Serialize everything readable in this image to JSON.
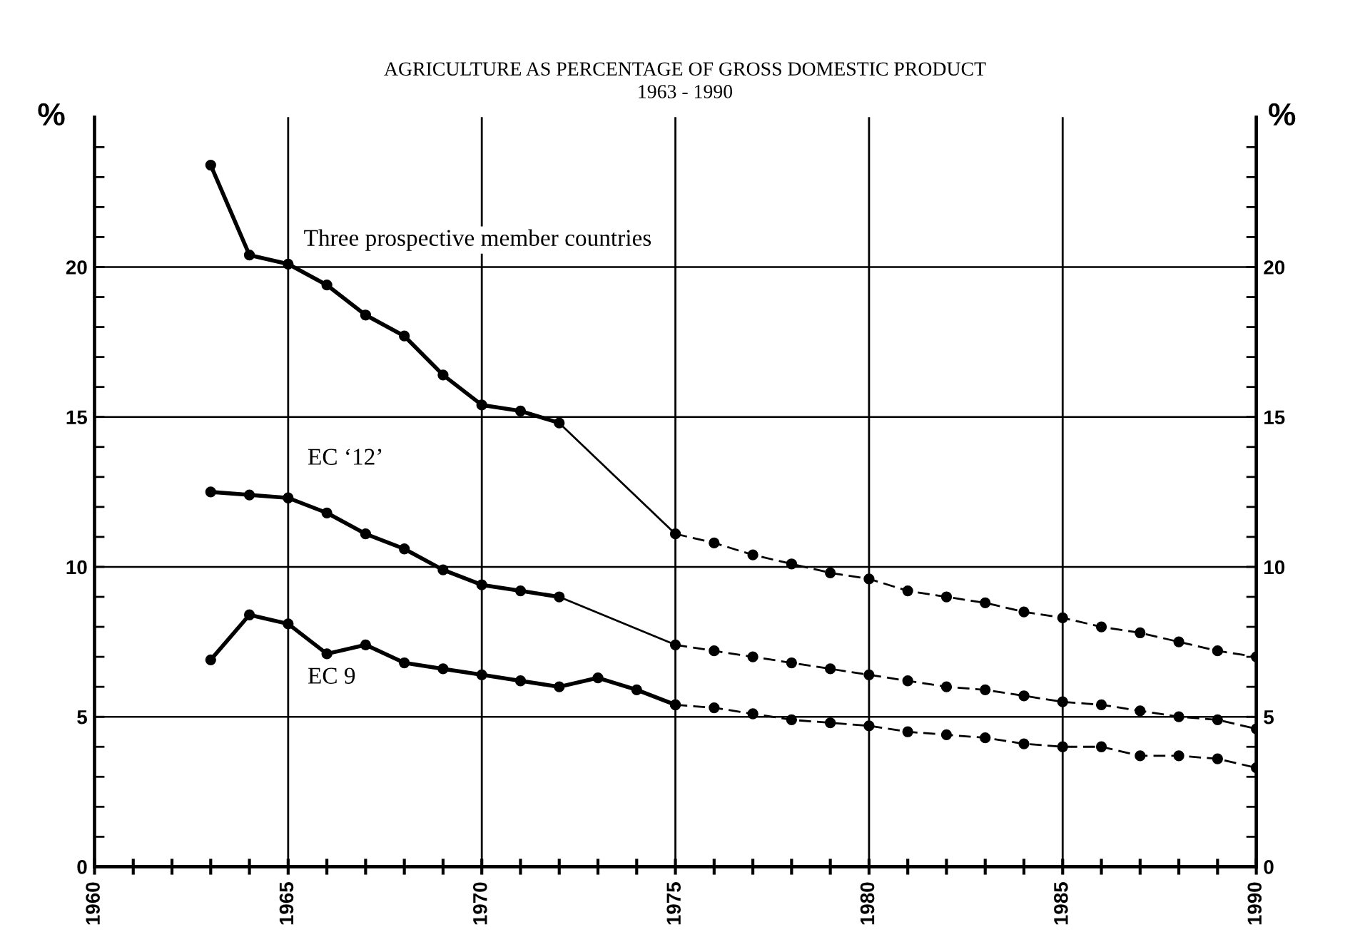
{
  "chart_data": {
    "type": "line",
    "title": "AGRICULTURE AS PERCENTAGE OF GROSS DOMESTIC PRODUCT",
    "subtitle": "1963 - 1990",
    "ylabel": "%",
    "y2label": "%",
    "xlim": [
      1960,
      1990
    ],
    "ylim": [
      0,
      25
    ],
    "y2lim": [
      0,
      25
    ],
    "xticks": [
      1960,
      {
        "value": 1961,
        "label": null
      },
      {
        "value": 1962,
        "label": null
      },
      {
        "value": 1963,
        "label": null
      },
      {
        "value": 1964,
        "label": null
      },
      1965,
      {
        "value": 1966,
        "label": null
      },
      {
        "value": 1967,
        "label": null
      },
      {
        "value": 1968,
        "label": null
      },
      {
        "value": 1969,
        "label": null
      },
      1970,
      {
        "value": 1971,
        "label": null
      },
      {
        "value": 1972,
        "label": null
      },
      {
        "value": 1973,
        "label": null
      },
      {
        "value": 1974,
        "label": null
      },
      1975,
      {
        "value": 1976,
        "label": null
      },
      {
        "value": 1977,
        "label": null
      },
      {
        "value": 1978,
        "label": null
      },
      {
        "value": 1979,
        "label": null
      },
      1980,
      {
        "value": 1981,
        "label": null
      },
      {
        "value": 1982,
        "label": null
      },
      {
        "value": 1983,
        "label": null
      },
      {
        "value": 1984,
        "label": null
      },
      1985,
      {
        "value": 1986,
        "label": null
      },
      {
        "value": 1987,
        "label": null
      },
      {
        "value": 1988,
        "label": null
      },
      {
        "value": 1989,
        "label": null
      },
      1990
    ],
    "yticks": [
      0,
      {
        "value": 1,
        "label": null
      },
      {
        "value": 2,
        "label": null
      },
      {
        "value": 3,
        "label": null
      },
      {
        "value": 4,
        "label": null
      },
      5,
      {
        "value": 6,
        "label": null
      },
      {
        "value": 7,
        "label": null
      },
      {
        "value": 8,
        "label": null
      },
      {
        "value": 9,
        "label": null
      },
      10,
      {
        "value": 11,
        "label": null
      },
      {
        "value": 12,
        "label": null
      },
      {
        "value": 13,
        "label": null
      },
      {
        "value": 14,
        "label": null
      },
      15,
      {
        "value": 16,
        "label": null
      },
      {
        "value": 17,
        "label": null
      },
      {
        "value": 18,
        "label": null
      },
      {
        "value": 19,
        "label": null
      },
      20,
      {
        "value": 21,
        "label": null
      },
      {
        "value": 22,
        "label": null
      },
      {
        "value": 23,
        "label": null
      },
      {
        "value": 24,
        "label": null
      }
    ],
    "y2ticks": [
      0,
      {
        "value": 1,
        "label": null
      },
      {
        "value": 2,
        "label": null
      },
      {
        "value": 3,
        "label": null
      },
      {
        "value": 4,
        "label": null
      },
      5,
      {
        "value": 6,
        "label": null
      },
      {
        "value": 7,
        "label": null
      },
      {
        "value": 8,
        "label": null
      },
      {
        "value": 9,
        "label": null
      },
      10,
      {
        "value": 11,
        "label": null
      },
      {
        "value": 12,
        "label": null
      },
      {
        "value": 13,
        "label": null
      },
      {
        "value": 14,
        "label": null
      },
      15,
      {
        "value": 16,
        "label": null
      },
      {
        "value": 17,
        "label": null
      },
      {
        "value": 18,
        "label": null
      },
      {
        "value": 19,
        "label": null
      },
      20,
      {
        "value": 21,
        "label": null
      },
      {
        "value": 22,
        "label": null
      },
      {
        "value": 23,
        "label": null
      },
      {
        "value": 24,
        "label": null
      }
    ],
    "grid": true,
    "series": [
      {
        "name": "Three prospective member countries",
        "color": "#000000",
        "marker": "circle",
        "line_style": "solid",
        "x": [
          1963,
          1964,
          1965,
          1966,
          1967,
          1968,
          1969,
          1970,
          1971,
          1972
        ],
        "values": [
          23.4,
          20.4,
          20.1,
          19.4,
          18.4,
          17.7,
          16.4,
          15.4,
          15.2,
          14.8
        ]
      },
      {
        "color": "#000000",
        "line_style": "solid",
        "x": [
          1972,
          1975
        ],
        "values": [
          14.8,
          11.1
        ]
      },
      {
        "color": "#000000",
        "marker": "circle",
        "line_style": "dashed",
        "x": [
          1975,
          1976,
          1977,
          1978,
          1979,
          1980,
          1981,
          1982,
          1983,
          1984,
          1985,
          1986,
          1987,
          1988,
          1989,
          1990
        ],
        "values": [
          11.1,
          10.8,
          10.4,
          10.1,
          9.8,
          9.6,
          9.2,
          9.0,
          8.8,
          8.5,
          8.3,
          8.0,
          7.8,
          7.5,
          7.2,
          7.0
        ]
      },
      {
        "name": "EC ‘12’",
        "color": "#000000",
        "marker": "circle",
        "line_style": "solid",
        "x": [
          1963,
          1964,
          1965,
          1966,
          1967,
          1968,
          1969,
          1970,
          1971,
          1972
        ],
        "values": [
          12.5,
          12.4,
          12.3,
          11.8,
          11.1,
          10.6,
          9.9,
          9.4,
          9.2,
          9.0
        ]
      },
      {
        "color": "#000000",
        "line_style": "solid",
        "x": [
          1972,
          1975
        ],
        "values": [
          9.0,
          7.4
        ]
      },
      {
        "color": "#000000",
        "marker": "circle",
        "line_style": "dashed",
        "x": [
          1975,
          1976,
          1977,
          1978,
          1979,
          1980,
          1981,
          1982,
          1983,
          1984,
          1985,
          1986,
          1987,
          1988,
          1989,
          1990
        ],
        "values": [
          7.4,
          7.2,
          7.0,
          6.8,
          6.6,
          6.4,
          6.2,
          6.0,
          5.9,
          5.7,
          5.5,
          5.4,
          5.2,
          5.0,
          4.9,
          4.6
        ]
      },
      {
        "name": "EC 9",
        "color": "#000000",
        "marker": "circle",
        "line_style": "solid",
        "x": [
          1963,
          1964,
          1965,
          1966,
          1967,
          1968,
          1969,
          1970,
          1971,
          1972,
          1973,
          1974,
          1975
        ],
        "values": [
          6.9,
          8.4,
          8.1,
          7.1,
          7.4,
          6.8,
          6.6,
          6.4,
          6.2,
          6.0,
          6.3,
          5.9,
          5.4
        ]
      },
      {
        "color": "#000000",
        "marker": "circle",
        "line_style": "dashed",
        "x": [
          1975,
          1976,
          1977,
          1978,
          1979,
          1980,
          1981,
          1982,
          1983,
          1984,
          1985,
          1986,
          1987,
          1988,
          1989,
          1990
        ],
        "values": [
          5.4,
          5.3,
          5.1,
          4.9,
          4.8,
          4.7,
          4.5,
          4.4,
          4.3,
          4.1,
          4.0,
          4.0,
          3.7,
          3.7,
          3.6,
          3.3
        ]
      }
    ]
  }
}
